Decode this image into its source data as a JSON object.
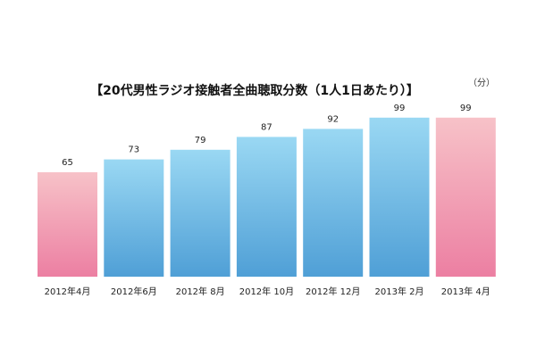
{
  "chart_data": {
    "type": "bar",
    "title": "【20代男性ラジオ接触者全曲聴取分数（1人1日あたり）】",
    "unit": "（分）",
    "categories": [
      "2012年4月",
      "2012年6月",
      "2012年 8月",
      "2012年 10月",
      "2012年 12月",
      "2013年 2月",
      "2013年 4月"
    ],
    "values": [
      65,
      73,
      79,
      87,
      92,
      99,
      99
    ],
    "value_labels": [
      "65",
      "73",
      "79",
      "87",
      "92",
      "99",
      "99"
    ],
    "ylim": [
      0,
      100
    ],
    "grid": false,
    "legend": "none",
    "colors": {
      "pink_top": "#f7c2c8",
      "pink_bottom": "#ec7fa2",
      "blue_top": "#9ad8f3",
      "blue_bottom": "#4f9fd6"
    },
    "highlighted_indices": [
      0,
      6
    ]
  }
}
